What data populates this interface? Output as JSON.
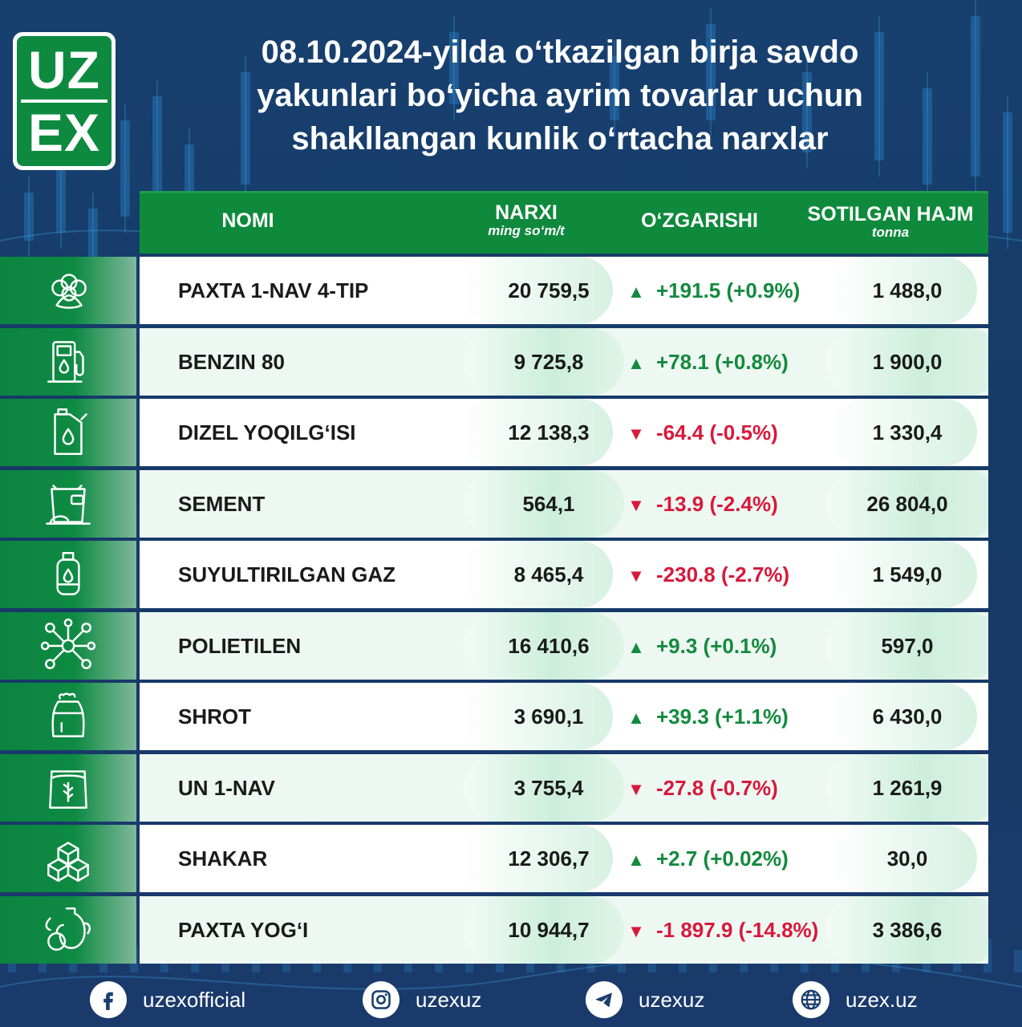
{
  "logo": {
    "line1": "UZ",
    "line2": "EX"
  },
  "title": {
    "lines": [
      "08.10.2024-yilda o‘tkazilgan birja savdo",
      "yakunlari bo‘yicha ayrim tovarlar uchun",
      "shakllangan kunlik o‘rtacha narxlar"
    ]
  },
  "table": {
    "headers": {
      "name": "NOMI",
      "price": "NARXI",
      "price_unit": "ming so‘m/t",
      "change": "O‘ZGARISHI",
      "volume": "SOTILGAN HAJM",
      "volume_unit": "tonna"
    },
    "rows": [
      {
        "icon": "cotton-icon",
        "name": "PAXTA  1-NAV  4-TIP",
        "price": "20 759,5",
        "direction": "up",
        "change": "+191.5 (+0.9%)",
        "volume": "1 488,0"
      },
      {
        "icon": "fuel-pump-icon",
        "name": "BENZIN  80",
        "price": "9 725,8",
        "direction": "up",
        "change": "+78.1 (+0.8%)",
        "volume": "1 900,0"
      },
      {
        "icon": "jerrycan-icon",
        "name": "DIZEL YOQILG‘ISI",
        "price": "12 138,3",
        "direction": "down",
        "change": "-64.4 (-0.5%)",
        "volume": "1 330,4"
      },
      {
        "icon": "cement-bag-icon",
        "name": "SEMENT",
        "price": "564,1",
        "direction": "down",
        "change": "-13.9 (-2.4%)",
        "volume": "26 804,0"
      },
      {
        "icon": "gas-cylinder-icon",
        "name": "SUYULTIRILGAN GAZ",
        "price": "8 465,4",
        "direction": "down",
        "change": "-230.8 (-2.7%)",
        "volume": "1 549,0"
      },
      {
        "icon": "molecule-icon",
        "name": "POLIETILEN",
        "price": "16 410,6",
        "direction": "up",
        "change": "+9.3 (+0.1%)",
        "volume": "597,0"
      },
      {
        "icon": "sack-icon",
        "name": "SHROT",
        "price": "3 690,1",
        "direction": "up",
        "change": "+39.3 (+1.1%)",
        "volume": "6 430,0"
      },
      {
        "icon": "flour-bag-icon",
        "name": "UN 1-NAV",
        "price": "3 755,4",
        "direction": "down",
        "change": "-27.8 (-0.7%)",
        "volume": "1 261,9"
      },
      {
        "icon": "sugar-cubes-icon",
        "name": "SHAKAR",
        "price": "12 306,7",
        "direction": "up",
        "change": "+2.7 (+0.02%)",
        "volume": "30,0"
      },
      {
        "icon": "oil-jug-icon",
        "name": "PAXTA YOG‘I",
        "price": "10 944,7",
        "direction": "down",
        "change": "-1 897.9 (-14.8%)",
        "volume": "3 386,6"
      }
    ],
    "arrows": {
      "up": "▲",
      "down": "▼"
    }
  },
  "footer": {
    "facebook": {
      "icon": "facebook-icon",
      "label": "uzexofficial"
    },
    "instagram": {
      "icon": "instagram-icon",
      "label": "uzexuz"
    },
    "telegram": {
      "icon": "telegram-icon",
      "label": "uzexuz"
    },
    "website": {
      "icon": "globe-icon",
      "label": "uzex.uz"
    }
  },
  "colors": {
    "background": "#17406f",
    "green": "#0f8a3c",
    "up": "#138a3e",
    "down": "#d7193c"
  }
}
